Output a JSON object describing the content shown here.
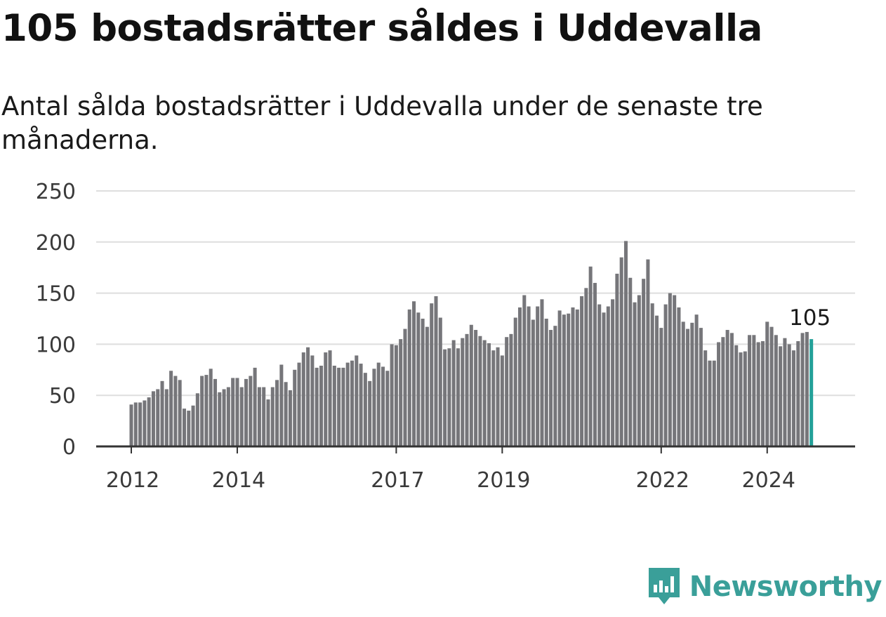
{
  "header": {
    "title": "105 bostadsrätter såldes i Uddevalla",
    "subtitle": "Antal sålda bostadsrätter i Uddevalla under de senaste tre månaderna."
  },
  "brand": {
    "name": "Newsworthy",
    "icon": "newsworthy-logo-icon",
    "color": "#3a9f99"
  },
  "colors": {
    "bar": "#76767a",
    "highlight": "#23a199",
    "grid": "#dedede",
    "axis": "#333333"
  },
  "chart_data": {
    "type": "bar",
    "title": "105 bostadsrätter såldes i Uddevalla",
    "subtitle": "Antal sålda bostadsrätter i Uddevalla under de senaste tre månaderna.",
    "xlabel": "",
    "ylabel": "",
    "ylim": [
      0,
      250
    ],
    "yticks": [
      0,
      50,
      100,
      150,
      200,
      250
    ],
    "xtick_labels": [
      "2012",
      "2014",
      "2017",
      "2019",
      "2022",
      "2024"
    ],
    "x_start": "2012-01",
    "x_interval": "month",
    "grid": true,
    "highlight_label": "105",
    "values": [
      41,
      43,
      43,
      45,
      48,
      54,
      56,
      64,
      56,
      74,
      69,
      65,
      37,
      35,
      40,
      52,
      69,
      70,
      76,
      66,
      53,
      56,
      58,
      67,
      67,
      58,
      66,
      69,
      77,
      58,
      58,
      46,
      58,
      65,
      80,
      63,
      55,
      75,
      82,
      92,
      97,
      89,
      77,
      79,
      92,
      94,
      79,
      77,
      77,
      82,
      84,
      89,
      81,
      72,
      64,
      76,
      82,
      78,
      74,
      100,
      99,
      105,
      115,
      134,
      142,
      131,
      125,
      117,
      140,
      147,
      126,
      95,
      96,
      104,
      96,
      106,
      110,
      119,
      114,
      108,
      104,
      101,
      94,
      97,
      89,
      107,
      110,
      126,
      136,
      148,
      137,
      124,
      137,
      144,
      125,
      114,
      118,
      133,
      129,
      130,
      136,
      134,
      147,
      155,
      176,
      160,
      139,
      131,
      137,
      144,
      169,
      185,
      201,
      165,
      141,
      148,
      164,
      183,
      140,
      128,
      116,
      139,
      150,
      148,
      136,
      122,
      115,
      121,
      129,
      116,
      94,
      84,
      84,
      102,
      107,
      114,
      111,
      99,
      92,
      93,
      109,
      109,
      102,
      103,
      122,
      117,
      109,
      98,
      106,
      100,
      94,
      103,
      111,
      112,
      105
    ]
  }
}
